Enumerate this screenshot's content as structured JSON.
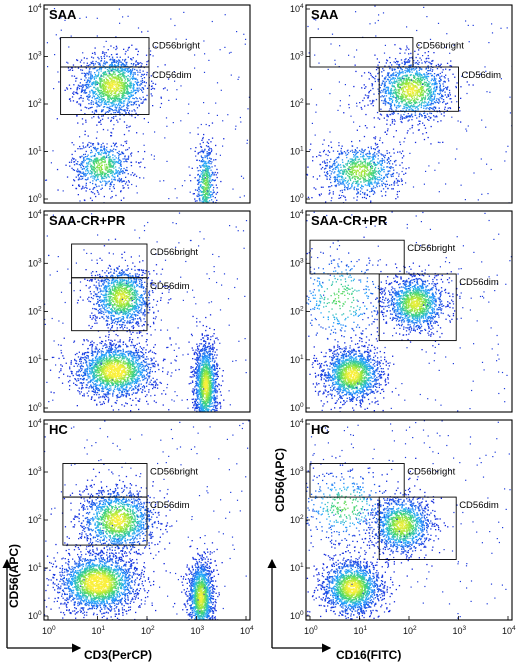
{
  "chart_data": {
    "type": "scatter",
    "axis_scale": "log",
    "tick_labels": [
      "10",
      "10",
      "10",
      "10",
      "10"
    ],
    "tick_exponents": [
      "0",
      "1",
      "2",
      "3",
      "4"
    ],
    "xlim": [
      1,
      10000
    ],
    "ylim": [
      1,
      10000
    ],
    "x_axis_labels": [
      "CD3(PerCP)",
      "CD16(FITC)"
    ],
    "y_axis_label": "CD56(APC)",
    "panels": [
      {
        "title": "SAA",
        "row": 0,
        "col": 0,
        "clusters": [
          {
            "cx": 20,
            "cy": 250,
            "sx": 0.35,
            "sy": 0.33,
            "n": 1400
          },
          {
            "cx": 12,
            "cy": 5,
            "sx": 0.3,
            "sy": 0.27,
            "n": 700
          },
          {
            "cx": 1500,
            "cy": 2,
            "sx": 0.1,
            "sy": 0.45,
            "n": 550
          }
        ],
        "gates": [
          {
            "label": "CD56bright",
            "x0": 1.8,
            "x1": 110,
            "y0": 600,
            "y1": 2500
          },
          {
            "label": "CD56dim",
            "x0": 1.8,
            "x1": 110,
            "y0": 60,
            "y1": 600
          }
        ]
      },
      {
        "title": "SAA",
        "row": 0,
        "col": 1,
        "clusters": [
          {
            "cx": 110,
            "cy": 200,
            "sx": 0.38,
            "sy": 0.32,
            "n": 1400
          },
          {
            "cx": 10,
            "cy": 4,
            "sx": 0.4,
            "sy": 0.28,
            "n": 900
          }
        ],
        "gates": [
          {
            "label": "CD56bright",
            "x0": 1,
            "x1": 120,
            "y0": 600,
            "y1": 2500
          },
          {
            "label": "CD56dim",
            "x0": 25,
            "x1": 1000,
            "y0": 70,
            "y1": 600
          }
        ]
      },
      {
        "title": "SAA-CR+PR",
        "row": 1,
        "col": 0,
        "clusters": [
          {
            "cx": 30,
            "cy": 200,
            "sx": 0.3,
            "sy": 0.32,
            "n": 1300
          },
          {
            "cx": 22,
            "cy": 6,
            "sx": 0.4,
            "sy": 0.28,
            "n": 1900
          },
          {
            "cx": 1500,
            "cy": 3,
            "sx": 0.12,
            "sy": 0.45,
            "n": 1500
          }
        ],
        "gates": [
          {
            "label": "CD56bright",
            "x0": 3,
            "x1": 100,
            "y0": 500,
            "y1": 2500
          },
          {
            "label": "CD56dim",
            "x0": 3,
            "x1": 100,
            "y0": 40,
            "y1": 500
          }
        ]
      },
      {
        "title": "SAA-CR+PR",
        "row": 1,
        "col": 1,
        "clusters": [
          {
            "cx": 130,
            "cy": 150,
            "sx": 0.3,
            "sy": 0.28,
            "n": 1300
          },
          {
            "cx": 7,
            "cy": 5,
            "sx": 0.3,
            "sy": 0.28,
            "n": 1600
          },
          {
            "cx": 4,
            "cy": 200,
            "sx": 0.5,
            "sy": 0.5,
            "n": 350
          }
        ],
        "gates": [
          {
            "label": "CD56bright",
            "x0": 1,
            "x1": 80,
            "y0": 600,
            "y1": 3000
          },
          {
            "label": "CD56dim",
            "x0": 25,
            "x1": 900,
            "y0": 25,
            "y1": 600
          }
        ]
      },
      {
        "title": "HC",
        "row": 2,
        "col": 0,
        "clusters": [
          {
            "cx": 25,
            "cy": 100,
            "sx": 0.38,
            "sy": 0.33,
            "n": 1500
          },
          {
            "cx": 10,
            "cy": 5,
            "sx": 0.4,
            "sy": 0.3,
            "n": 2200
          },
          {
            "cx": 1200,
            "cy": 2.5,
            "sx": 0.13,
            "sy": 0.4,
            "n": 1400
          }
        ],
        "gates": [
          {
            "label": "CD56bright",
            "x0": 2,
            "x1": 100,
            "y0": 300,
            "y1": 1500
          },
          {
            "label": "CD56dim",
            "x0": 2,
            "x1": 100,
            "y0": 30,
            "y1": 300
          }
        ]
      },
      {
        "title": "HC",
        "row": 2,
        "col": 1,
        "clusters": [
          {
            "cx": 70,
            "cy": 80,
            "sx": 0.3,
            "sy": 0.3,
            "n": 1300
          },
          {
            "cx": 7,
            "cy": 4,
            "sx": 0.3,
            "sy": 0.28,
            "n": 1700
          },
          {
            "cx": 5,
            "cy": 200,
            "sx": 0.5,
            "sy": 0.4,
            "n": 400
          }
        ],
        "gates": [
          {
            "label": "CD56bright",
            "x0": 1,
            "x1": 80,
            "y0": 300,
            "y1": 1500
          },
          {
            "label": "CD56dim",
            "x0": 25,
            "x1": 900,
            "y0": 15,
            "y1": 300
          }
        ]
      }
    ]
  }
}
